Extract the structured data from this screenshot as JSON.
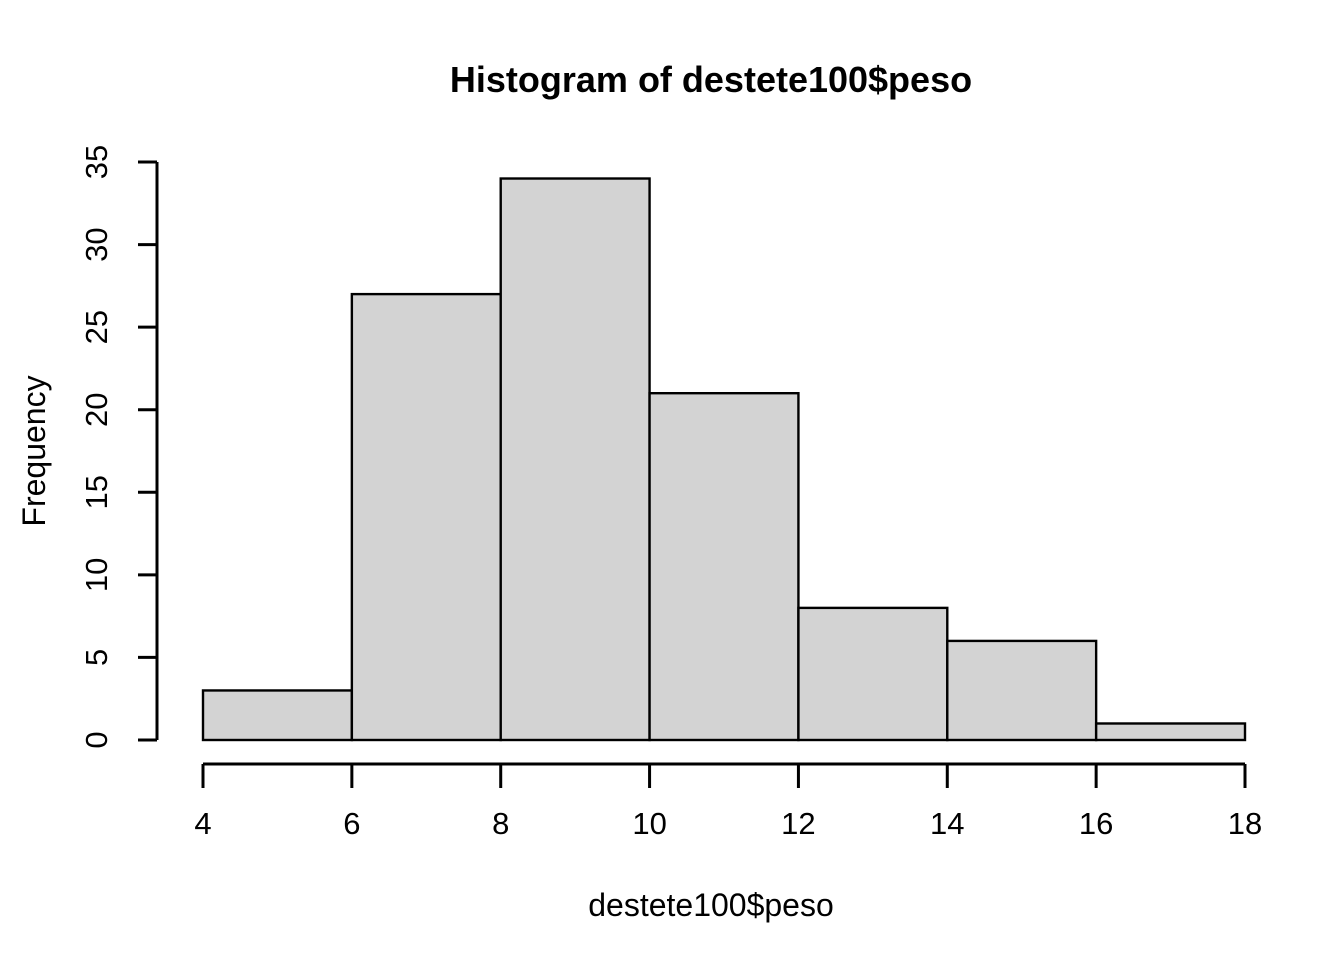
{
  "figure": {
    "background_color": "#ffffff"
  },
  "chart_data": {
    "type": "bar",
    "subtype": "histogram",
    "title": "Histogram of destete100$peso",
    "xlabel": "destete100$peso",
    "ylabel": "Frequency",
    "breaks": [
      4,
      6,
      8,
      10,
      12,
      14,
      16,
      18
    ],
    "counts": [
      3,
      27,
      34,
      21,
      8,
      6,
      1
    ],
    "bin_labels": [
      "4-6",
      "6-8",
      "8-10",
      "10-12",
      "12-14",
      "14-16",
      "16-18"
    ],
    "x_ticks": [
      4,
      6,
      8,
      10,
      12,
      14,
      16,
      18
    ],
    "y_ticks": [
      0,
      5,
      10,
      15,
      20,
      25,
      30,
      35
    ],
    "xlim": [
      4,
      18
    ],
    "ylim": [
      0,
      35
    ],
    "grid": false,
    "legend_position": "none",
    "bar_fill_color": "#d3d3d3",
    "bar_stroke_color": "#000000",
    "axis_color": "#000000",
    "text_color": "#000000"
  }
}
